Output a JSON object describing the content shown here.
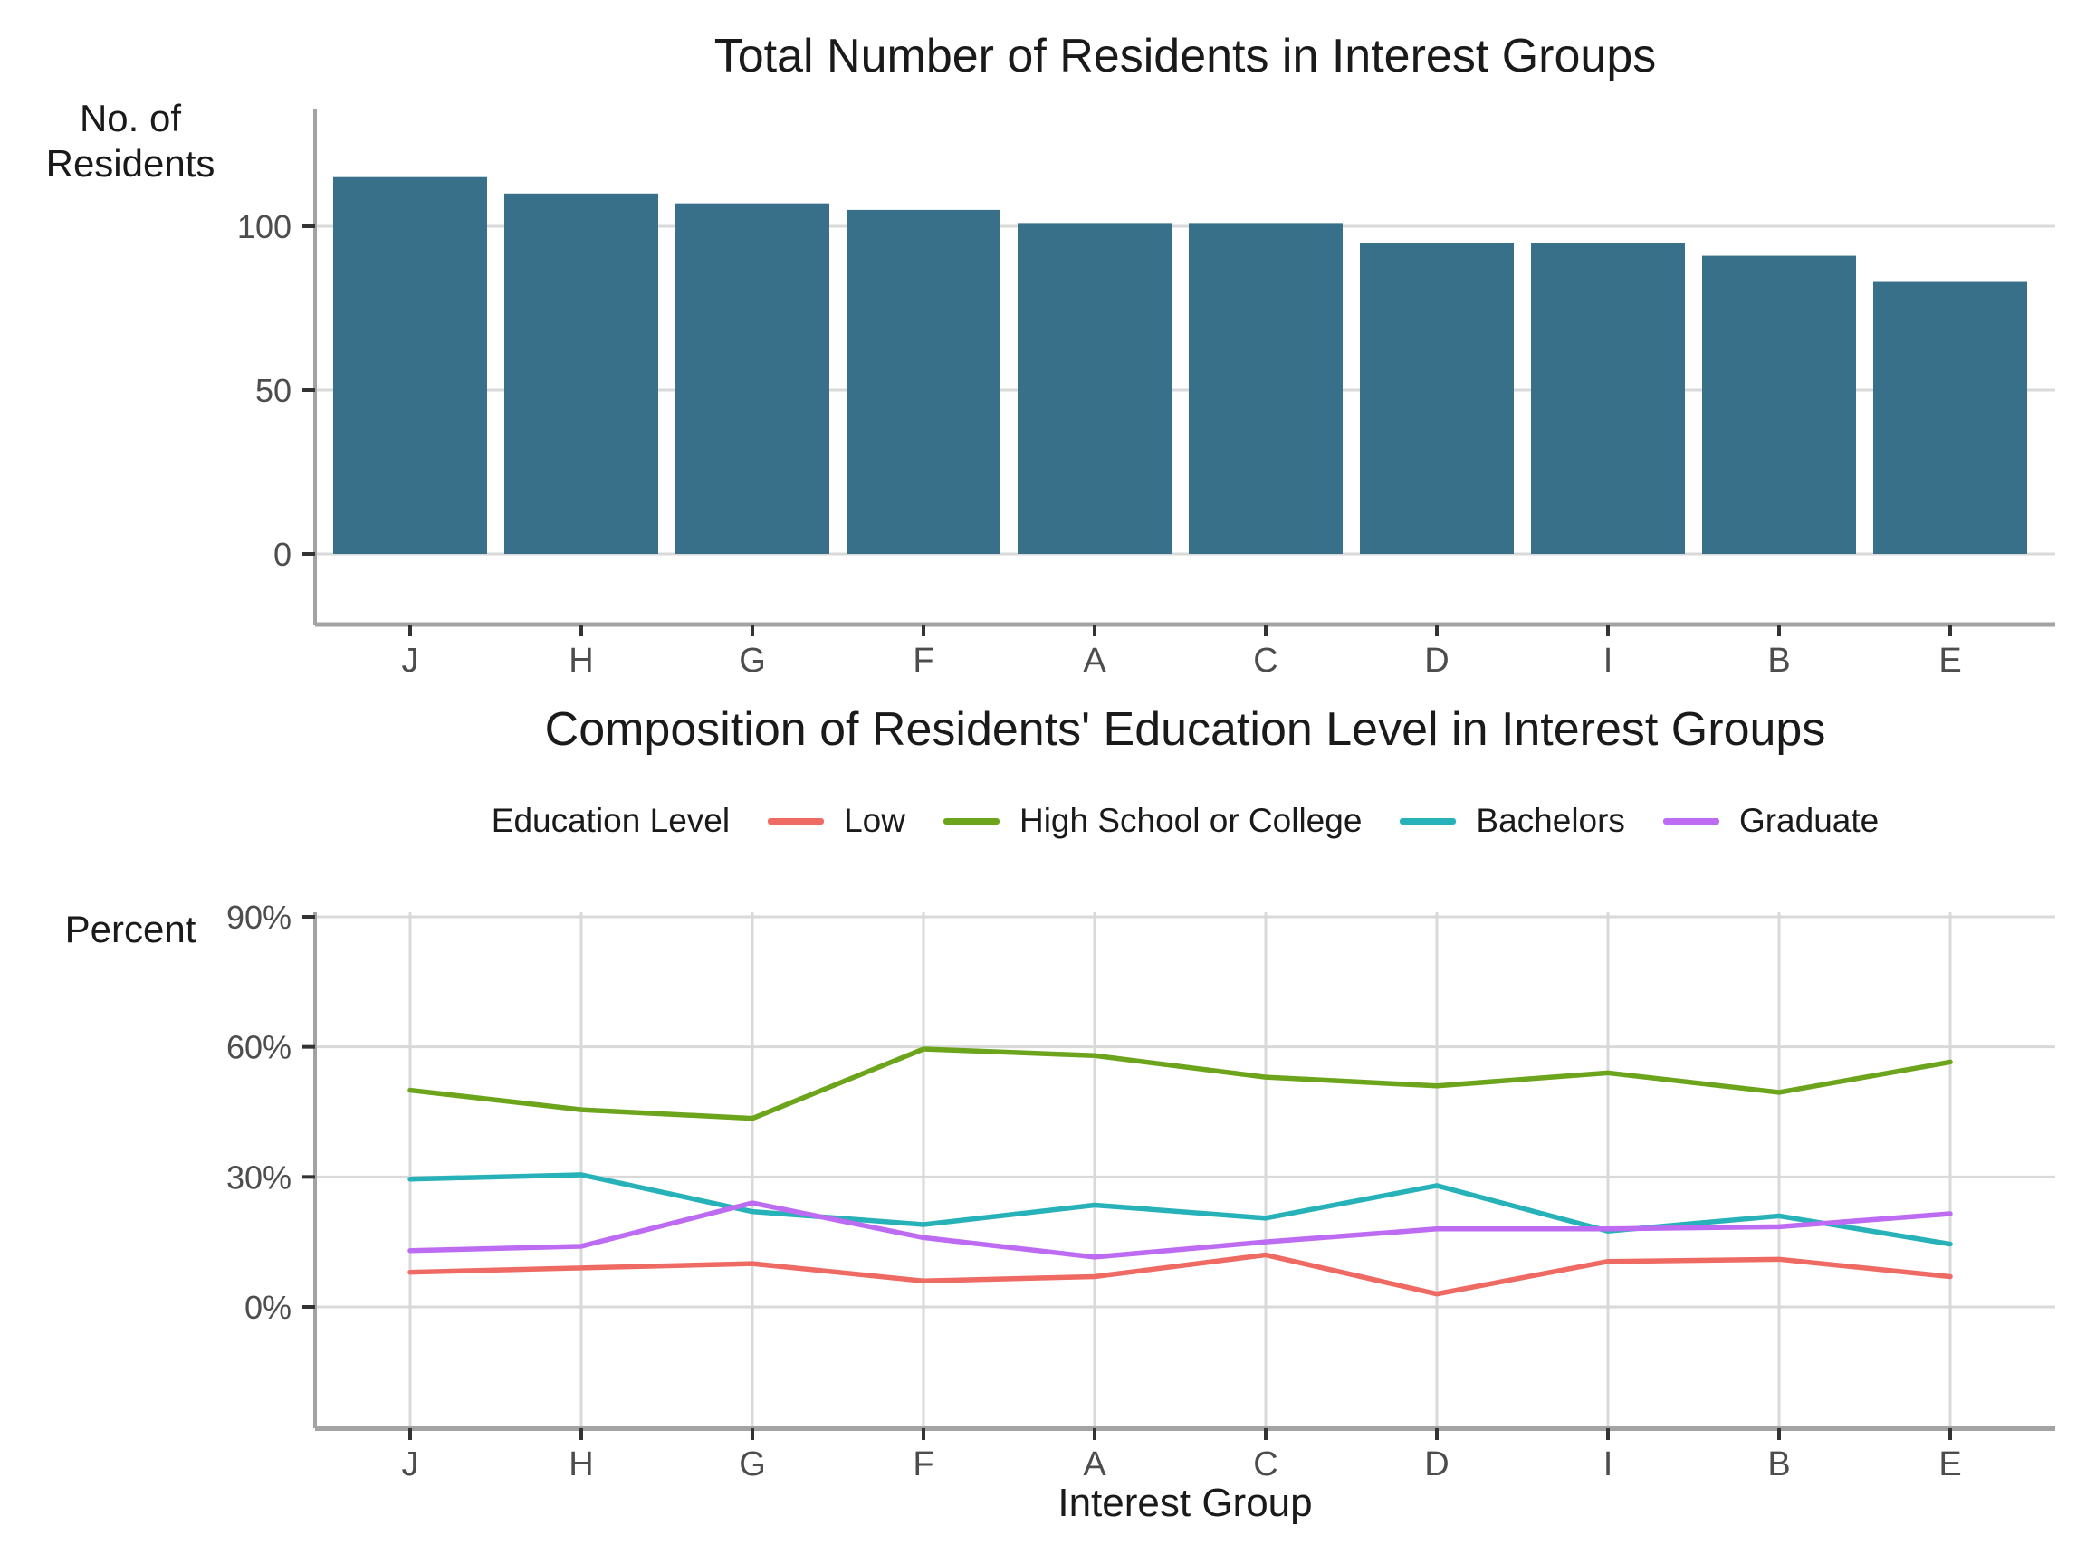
{
  "palette": {
    "bar_fill": "#377088",
    "grid": "#d9d9d9",
    "axis_line": "#a3a3a3",
    "tick_mark": "#333333",
    "tick_label": "#4d4d4d",
    "title_text": "#1a1a1a"
  },
  "chart_data": [
    {
      "type": "bar",
      "title": "Total Number of Residents in Interest Groups",
      "ylabel": "No. of Residents",
      "ylabel_lines": [
        "No. of",
        "Residents"
      ],
      "xlabel": "",
      "categories": [
        "J",
        "H",
        "G",
        "F",
        "A",
        "C",
        "D",
        "I",
        "B",
        "E"
      ],
      "values": [
        115,
        110,
        107,
        105,
        101,
        101,
        95,
        95,
        91,
        83
      ],
      "yticks": [
        0,
        50,
        100
      ],
      "ylim": [
        0,
        136
      ],
      "grid": "horizontal-only",
      "bar_color": "#377088"
    },
    {
      "type": "line",
      "title": "Composition of Residents' Education Level in Interest Groups",
      "legend_title": "Education Level",
      "legend_position": "top-center",
      "ylabel": "Percent",
      "xlabel": "Interest Group",
      "categories": [
        "J",
        "H",
        "G",
        "F",
        "A",
        "C",
        "D",
        "I",
        "B",
        "E"
      ],
      "yticks": [
        0,
        30,
        60,
        90
      ],
      "ytick_labels": [
        "0%",
        "30%",
        "60%",
        "90%"
      ],
      "ylim": [
        -28,
        90
      ],
      "grid": "both",
      "series": [
        {
          "name": "Low",
          "color": "#ee6a63",
          "values": [
            8,
            9,
            10,
            6,
            7,
            12,
            3,
            10.5,
            11,
            7
          ]
        },
        {
          "name": "High School or College",
          "color": "#6ca41c",
          "values": [
            50,
            45.5,
            43.5,
            59.5,
            58,
            53,
            51,
            54,
            49.5,
            56.5
          ]
        },
        {
          "name": "Bachelors",
          "color": "#26b2b8",
          "values": [
            29.5,
            30.5,
            22,
            19,
            23.5,
            20.5,
            28,
            17.5,
            21,
            14.5
          ]
        },
        {
          "name": "Graduate",
          "color": "#bd6bf2",
          "values": [
            13,
            14,
            24,
            16,
            11.5,
            15,
            18,
            18,
            18.5,
            21.5
          ]
        }
      ]
    }
  ]
}
